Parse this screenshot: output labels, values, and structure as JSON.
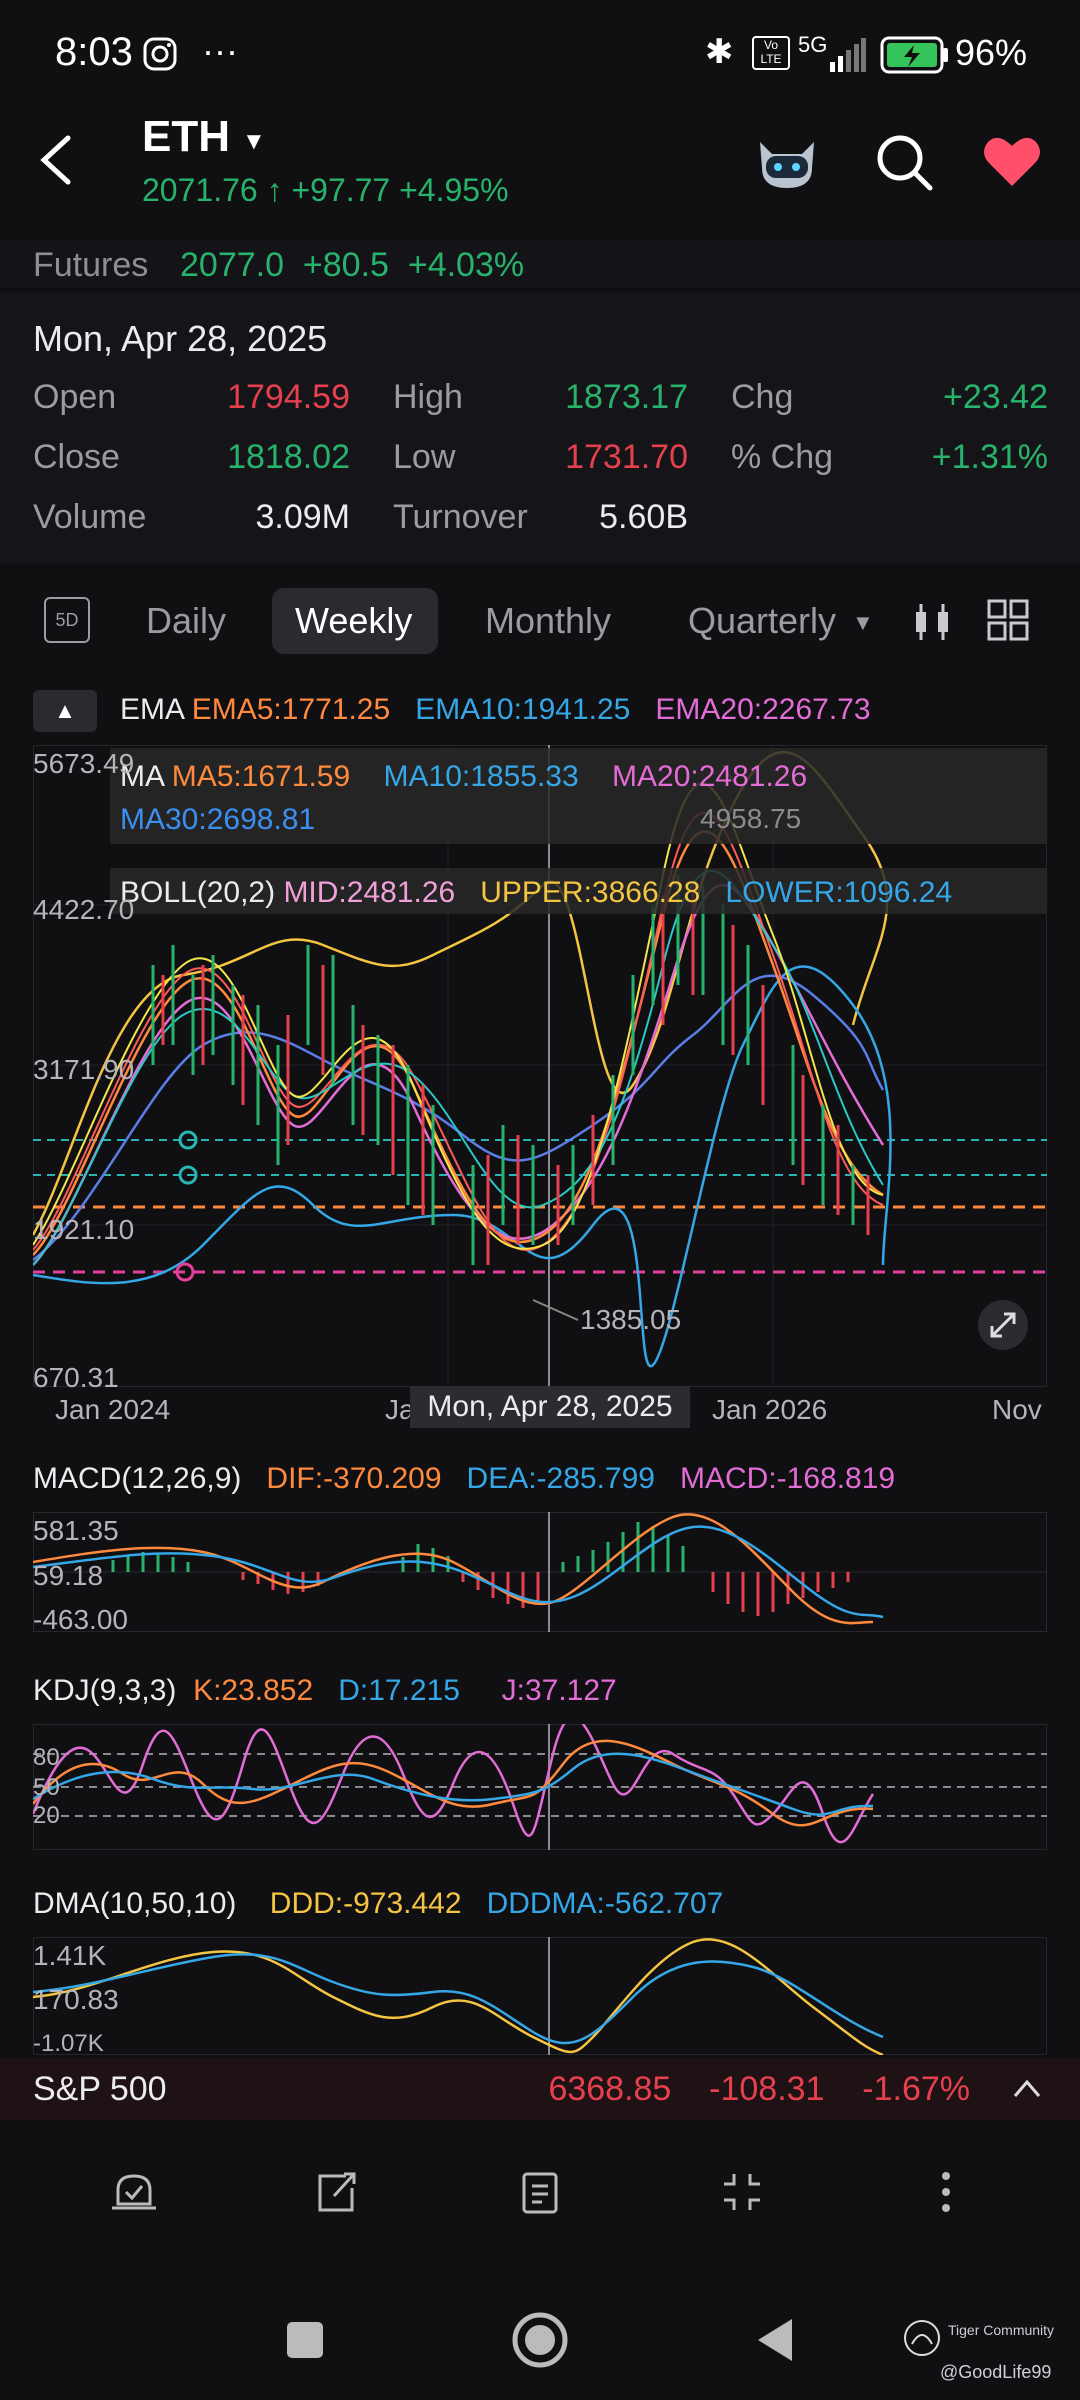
{
  "status": {
    "time": "8:03",
    "battery": "96%",
    "signal": "5G"
  },
  "header": {
    "ticker": "ETH",
    "price": "2071.76",
    "arrow": "↑",
    "change": "+97.77",
    "change_pct": "+4.95%"
  },
  "futures": {
    "label": "Futures",
    "price": "2077.0",
    "change": "+80.5",
    "change_pct": "+4.03%"
  },
  "ohlc": {
    "date": "Mon, Apr 28, 2025",
    "open_label": "Open",
    "open": "1794.59",
    "high_label": "High",
    "high": "1873.17",
    "chg_label": "Chg",
    "chg": "+23.42",
    "close_label": "Close",
    "close": "1818.02",
    "low_label": "Low",
    "low": "1731.70",
    "pchg_label": "% Chg",
    "pchg": "+1.31%",
    "volume_label": "Volume",
    "volume": "3.09M",
    "turnover_label": "Turnover",
    "turnover": "5.60B"
  },
  "tabs": {
    "d5": "5D",
    "daily": "Daily",
    "weekly": "Weekly",
    "monthly": "Monthly",
    "quarterly": "Quarterly"
  },
  "ema": {
    "label": "EMA",
    "ema5": "EMA5:1771.25",
    "ema10": "EMA10:1941.25",
    "ema20": "EMA20:2267.73"
  },
  "ma": {
    "label": "MA",
    "ma5": "MA5:1671.59",
    "ma10": "MA10:1855.33",
    "ma20": "MA20:2481.26",
    "ma30": "MA30:2698.81"
  },
  "boll": {
    "label": "BOLL(20,2)",
    "mid": "MID:2481.26",
    "upper": "UPPER:3866.28",
    "lower": "LOWER:1096.24"
  },
  "main_axis": {
    "y1": "5673.49",
    "y2": "4422.70",
    "y3": "3171.90",
    "y4": "1921.10",
    "y5": "670.31",
    "high_mark": "4958.75",
    "low_mark": "1385.05",
    "x1": "Jan 2024",
    "x2": "Ja",
    "x3": "Jan 2026",
    "x4": "Nov",
    "crosshair": "Mon, Apr 28, 2025"
  },
  "macd": {
    "label": "MACD(12,26,9)",
    "dif": "DIF:-370.209",
    "dea": "DEA:-285.799",
    "macd": "MACD:-168.819",
    "y1": "581.35",
    "y2": "59.18",
    "y3": "-463.00"
  },
  "kdj": {
    "label": "KDJ(9,3,3)",
    "k": "K:23.852",
    "d": "D:17.215",
    "j": "J:37.127",
    "y1": "80",
    "y2": "50",
    "y3": "20"
  },
  "dma": {
    "label": "DMA(10,50,10)",
    "ddd": "DDD:-973.442",
    "dddma": "DDDMA:-562.707",
    "y1": "1.41K",
    "y2": "170.83",
    "y3": "-1.07K"
  },
  "sp": {
    "label": "S&P 500",
    "price": "6368.85",
    "change": "-108.31",
    "change_pct": "-1.67%"
  },
  "watermark": {
    "brand": "Tiger Community",
    "user": "@GoodLife99"
  },
  "colors": {
    "green": "#27b36b",
    "red": "#e6404f",
    "orange": "#ff8a3d",
    "blue": "#35a6e6",
    "pink": "#e36cd6",
    "yellow": "#f4c542"
  }
}
